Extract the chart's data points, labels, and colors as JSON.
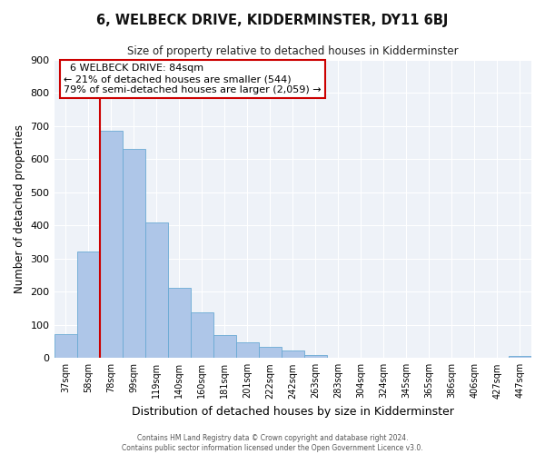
{
  "title": "6, WELBECK DRIVE, KIDDERMINSTER, DY11 6BJ",
  "subtitle": "Size of property relative to detached houses in Kidderminster",
  "xlabel": "Distribution of detached houses by size in Kidderminster",
  "ylabel": "Number of detached properties",
  "footer_lines": [
    "Contains HM Land Registry data © Crown copyright and database right 2024.",
    "Contains public sector information licensed under the Open Government Licence v3.0."
  ],
  "bin_labels": [
    "37sqm",
    "58sqm",
    "78sqm",
    "99sqm",
    "119sqm",
    "140sqm",
    "160sqm",
    "181sqm",
    "201sqm",
    "222sqm",
    "242sqm",
    "263sqm",
    "283sqm",
    "304sqm",
    "324sqm",
    "345sqm",
    "365sqm",
    "386sqm",
    "406sqm",
    "427sqm",
    "447sqm"
  ],
  "bar_values": [
    72,
    320,
    685,
    630,
    410,
    212,
    138,
    68,
    48,
    35,
    22,
    10,
    0,
    0,
    0,
    0,
    0,
    0,
    0,
    0,
    5
  ],
  "bar_color": "#aec6e8",
  "bar_edgecolor": "#6aaad4",
  "ylim": [
    0,
    900
  ],
  "yticks": [
    0,
    100,
    200,
    300,
    400,
    500,
    600,
    700,
    800,
    900
  ],
  "property_line_color": "#cc0000",
  "annotation_title": "6 WELBECK DRIVE: 84sqm",
  "annotation_line1": "← 21% of detached houses are smaller (544)",
  "annotation_line2": "79% of semi-detached houses are larger (2,059) →",
  "annotation_box_color": "#cc0000",
  "background_color": "#eef2f8",
  "grid_color": "#ffffff",
  "fig_width": 6.0,
  "fig_height": 5.0,
  "dpi": 100
}
